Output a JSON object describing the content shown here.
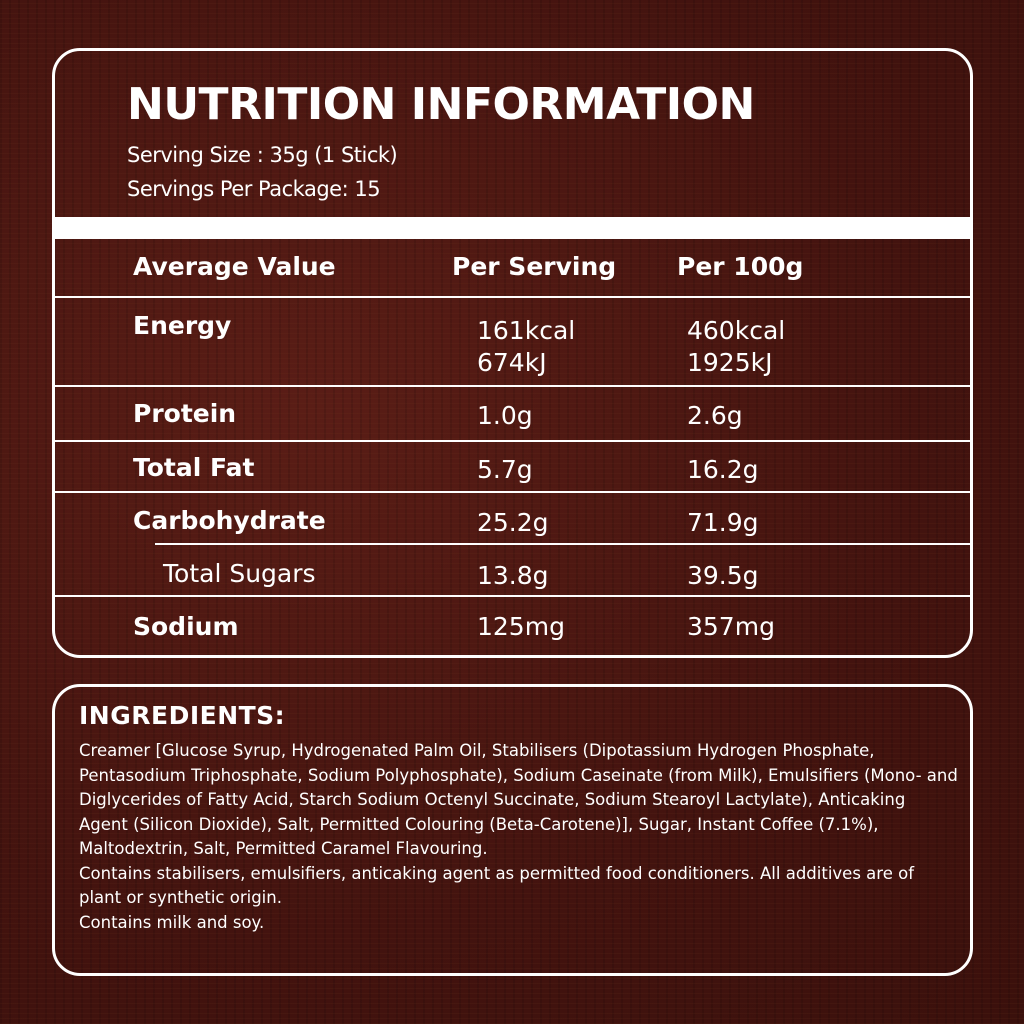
{
  "nutrition": {
    "title": "NUTRITION INFORMATION",
    "serving_size": "Serving Size : 35g (1 Stick)",
    "servings_per_package": "Servings Per Package: 15",
    "headers": {
      "average_value": "Average Value",
      "per_serving": "Per Serving",
      "per_100g": "Per 100g"
    },
    "rows": [
      {
        "name": "Energy",
        "per_serving": [
          "161kcal",
          "674kJ"
        ],
        "per_100g": [
          "460kcal",
          "1925kJ"
        ]
      },
      {
        "name": "Protein",
        "per_serving": [
          "1.0g"
        ],
        "per_100g": [
          "2.6g"
        ]
      },
      {
        "name": "Total Fat",
        "per_serving": [
          "5.7g"
        ],
        "per_100g": [
          "16.2g"
        ]
      },
      {
        "name": "Carbohydrate",
        "per_serving": [
          "25.2g"
        ],
        "per_100g": [
          "71.9g"
        ]
      },
      {
        "name": "Total Sugars",
        "per_serving": [
          "13.8g"
        ],
        "per_100g": [
          "39.5g"
        ]
      },
      {
        "name": "Sodium",
        "per_serving": [
          "125mg"
        ],
        "per_100g": [
          "357mg"
        ]
      }
    ]
  },
  "ingredients": {
    "title": "INGREDIENTS:",
    "paragraphs": [
      "Creamer [Glucose Syrup, Hydrogenated Palm Oil, Stabilisers (Dipotassium Hydrogen Phosphate, Pentasodium Triphosphate, Sodium Polyphosphate), Sodium Caseinate (from Milk), Emulsifiers (Mono- and Diglycerides of Fatty Acid, Starch Sodium Octenyl Succinate, Sodium Stearoyl Lactylate), Anticaking Agent (Silicon Dioxide), Salt, Permitted Colouring (Beta-Carotene)], Sugar, Instant Coffee (7.1%), Maltodextrin, Salt, Permitted Caramel Flavouring.",
      "Contains stabilisers, emulsifiers, anticaking agent as permitted food conditioners. All additives are of plant or synthetic origin.",
      "Contains milk and soy."
    ]
  },
  "colors": {
    "background": "#4a1612",
    "text": "#ffffff",
    "border": "#ffffff"
  }
}
